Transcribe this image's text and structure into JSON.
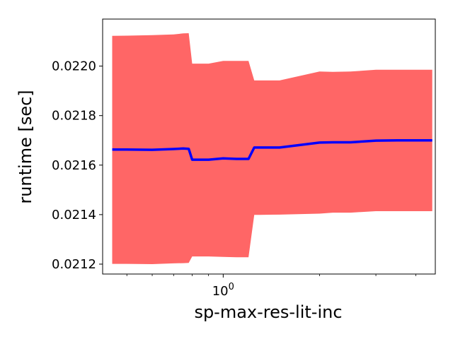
{
  "chart_data": {
    "type": "area",
    "xlabel": "sp-max-res-lit-inc",
    "ylabel": "runtime [sec]",
    "xscale": "log",
    "xlim": [
      0.42,
      4.6
    ],
    "ylim": [
      0.02116,
      0.02219
    ],
    "grid": false,
    "x_major_ticks": [
      {
        "value": 1,
        "base": "10",
        "exp": "0"
      }
    ],
    "x_minor_ticks": [
      0.5,
      0.6,
      0.7,
      0.8,
      0.9,
      2,
      3,
      4
    ],
    "y_ticks": [
      {
        "value": 0.0212,
        "label": "0.0212"
      },
      {
        "value": 0.0214,
        "label": "0.0214"
      },
      {
        "value": 0.0216,
        "label": "0.0216"
      },
      {
        "value": 0.0218,
        "label": "0.0218"
      },
      {
        "value": 0.022,
        "label": "0.0220"
      }
    ],
    "series": [
      {
        "kind": "line",
        "color": "#0000ff",
        "x": [
          0.45,
          0.5,
          0.6,
          0.7,
          0.75,
          0.78,
          0.8,
          0.9,
          1.0,
          1.1,
          1.2,
          1.25,
          1.3,
          1.5,
          2.0,
          2.2,
          2.5,
          3.0,
          3.5,
          4.0,
          4.5
        ],
        "y": [
          0.021663,
          0.021663,
          0.021662,
          0.021665,
          0.021667,
          0.021666,
          0.021622,
          0.021622,
          0.021627,
          0.021625,
          0.021625,
          0.021671,
          0.021671,
          0.021671,
          0.021691,
          0.021692,
          0.021692,
          0.021699,
          0.0217,
          0.0217,
          0.0217
        ]
      },
      {
        "kind": "band",
        "color": "#ff6666",
        "x": [
          0.45,
          0.5,
          0.6,
          0.7,
          0.75,
          0.78,
          0.8,
          0.9,
          1.0,
          1.1,
          1.2,
          1.25,
          1.3,
          1.5,
          2.0,
          2.2,
          2.5,
          3.0,
          3.5,
          4.0,
          4.5
        ],
        "upper": [
          0.022122,
          0.022123,
          0.022125,
          0.022128,
          0.022132,
          0.022133,
          0.02201,
          0.02201,
          0.022021,
          0.022021,
          0.022021,
          0.021942,
          0.021942,
          0.021942,
          0.021978,
          0.021977,
          0.021978,
          0.021985,
          0.021985,
          0.021985,
          0.021985
        ],
        "lower": [
          0.021201,
          0.021201,
          0.0212,
          0.021203,
          0.021204,
          0.021205,
          0.021231,
          0.021231,
          0.021229,
          0.021228,
          0.021228,
          0.021399,
          0.021399,
          0.0214,
          0.021404,
          0.021408,
          0.021408,
          0.021414,
          0.021414,
          0.021414,
          0.021414
        ]
      }
    ]
  }
}
